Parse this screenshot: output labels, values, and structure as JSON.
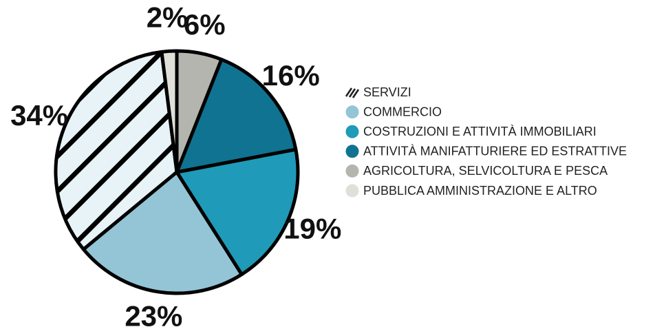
{
  "chart_data": {
    "type": "pie",
    "categories": [
      "SERVIZI",
      "COMMERCIO",
      "COSTRUZIONI E ATTIVITÀ IMMOBILIARI",
      "ATTIVITÀ MANIFATTURIERE ED ESTRATTIVE",
      "AGRICOLTURA, SELVICOLTURA E PESCA",
      "PUBBLICA AMMINISTRAZIONE E ALTRO"
    ],
    "values": [
      34,
      23,
      19,
      16,
      6,
      2
    ],
    "value_labels": [
      "34%",
      "23%",
      "19%",
      "16%",
      "6%",
      "2%"
    ],
    "colors": [
      "#e8f3f8",
      "#93c5d6",
      "#1f9ab8",
      "#0f7391",
      "#b5b5b0",
      "#e0e0da"
    ],
    "hatched": [
      true,
      false,
      false,
      false,
      false,
      false
    ],
    "legend": "right"
  }
}
